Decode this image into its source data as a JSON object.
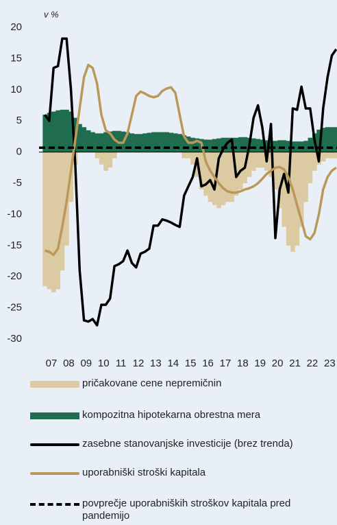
{
  "chart_data": {
    "type": "bar-line",
    "y_label": "v %",
    "x": [
      7.125,
      7.375,
      7.625,
      7.875,
      8.125,
      8.375,
      8.625,
      8.875,
      9.125,
      9.375,
      9.625,
      9.875,
      10.125,
      10.375,
      10.625,
      10.875,
      11.125,
      11.375,
      11.625,
      11.875,
      12.125,
      12.375,
      12.625,
      12.875,
      13.125,
      13.375,
      13.625,
      13.875,
      14.125,
      14.375,
      14.625,
      14.875,
      15.125,
      15.375,
      15.625,
      15.875,
      16.125,
      16.375,
      16.625,
      16.875,
      17.125,
      17.375,
      17.625,
      17.875,
      18.125,
      18.375,
      18.625,
      18.875,
      19.125,
      19.375,
      19.625,
      19.875,
      20.125,
      20.375,
      20.625,
      20.875,
      21.125,
      21.375,
      21.625,
      21.875,
      22.125,
      22.375,
      22.625,
      22.875,
      23.125,
      23.375,
      23.625,
      23.875
    ],
    "xlim": [
      6.79,
      23.92
    ],
    "xticks": [
      {
        "value": 7.5,
        "label": "07"
      },
      {
        "value": 8.5,
        "label": "08"
      },
      {
        "value": 9.5,
        "label": "09"
      },
      {
        "value": 10.5,
        "label": "10"
      },
      {
        "value": 11.5,
        "label": "11"
      },
      {
        "value": 12.5,
        "label": "12"
      },
      {
        "value": 13.5,
        "label": "13"
      },
      {
        "value": 14.5,
        "label": "14"
      },
      {
        "value": 15.5,
        "label": "15"
      },
      {
        "value": 16.5,
        "label": "16"
      },
      {
        "value": 17.5,
        "label": "17"
      },
      {
        "value": 18.5,
        "label": "18"
      },
      {
        "value": 19.5,
        "label": "19"
      },
      {
        "value": 20.5,
        "label": "20"
      },
      {
        "value": 21.5,
        "label": "21"
      },
      {
        "value": 22.5,
        "label": "22"
      },
      {
        "value": 23.5,
        "label": "23"
      }
    ],
    "ylim": [
      -30,
      20
    ],
    "yticks": [
      20,
      15,
      10,
      5,
      0,
      -5,
      -10,
      -15,
      -20,
      -25,
      -30
    ],
    "series": [
      {
        "name": "pričakovane cene nepremičnin",
        "kind": "bar",
        "color": "#dccaa3",
        "values": [
          -21.5,
          -22,
          -22.5,
          -22,
          -19,
          -15,
          -8,
          -2,
          0.5,
          0.5,
          0.3,
          0,
          -1,
          -2,
          -3,
          -2.5,
          -1,
          0.3,
          0.5,
          0.5,
          0.5,
          0.5,
          0.5,
          0.5,
          0.5,
          0.5,
          0.5,
          0.5,
          0.5,
          0.5,
          0.3,
          0,
          -1,
          -1,
          -2,
          -4,
          -6,
          -7,
          -8,
          -8.5,
          -9,
          -8.5,
          -8,
          -8,
          -7,
          -6,
          -5,
          -4,
          -3,
          -2.5,
          -2.5,
          -3,
          -4,
          -6,
          -9,
          -12,
          -15,
          -16,
          -15,
          -12,
          -8,
          -5,
          -3,
          -2,
          -1.5,
          -1,
          -1,
          -1
        ]
      },
      {
        "name": "kompozitna hipotekarna obrestna mera",
        "kind": "bar",
        "color": "#1f6d4e",
        "values": [
          6,
          6.3,
          6.5,
          6.7,
          6.8,
          6.8,
          6.5,
          5.5,
          4.5,
          4,
          3.5,
          3.2,
          3,
          3,
          3.2,
          3.3,
          3.4,
          3.4,
          3.3,
          3.2,
          3,
          2.9,
          2.9,
          3,
          3.1,
          3.2,
          3.2,
          3.2,
          3.2,
          3.1,
          3,
          2.9,
          2.7,
          2.5,
          2.3,
          2.2,
          2.1,
          2,
          2,
          2.1,
          2.2,
          2.3,
          2.3,
          2.3,
          2.3,
          2.4,
          2.4,
          2.3,
          2.2,
          2.1,
          2,
          1.9,
          1.8,
          1.8,
          1.9,
          1.9,
          1.8,
          1.7,
          1.7,
          1.7,
          1.8,
          2.3,
          3,
          3.6,
          3.9,
          4,
          4,
          4
        ]
      },
      {
        "name": "zasebne stanovanjske investicije (brez trenda)",
        "kind": "line",
        "color": "#000000",
        "values": [
          6,
          5,
          13.5,
          13.8,
          18.2,
          18.2,
          10,
          -2,
          -19,
          -27,
          -27.2,
          -26.8,
          -27.8,
          -24.5,
          -24.5,
          -23.5,
          -18.3,
          -18,
          -17.5,
          -15.8,
          -17.8,
          -18.5,
          -16.3,
          -16,
          -15.5,
          -11.8,
          -11.8,
          -10.8,
          -11,
          -11.3,
          -11.7,
          -12,
          -7,
          -5.5,
          -4,
          -1,
          -5.5,
          -5.2,
          -4.5,
          -6,
          -1,
          0.5,
          1.5,
          2,
          -4,
          -3,
          -2.5,
          1,
          5.5,
          7.5,
          4,
          -1.5,
          4.5,
          -13.8,
          -6,
          -3.5,
          -6.5,
          7,
          6.8,
          10.5,
          7,
          7,
          2,
          -1.5,
          7,
          12,
          15.5,
          16.5
        ]
      },
      {
        "name": "uporabniški stroški kapitala",
        "kind": "line",
        "color": "#b9985a",
        "values": [
          -15.8,
          -16,
          -16.5,
          -15.5,
          -12,
          -8,
          -3,
          2,
          7,
          12,
          14,
          13.5,
          11,
          6,
          3.5,
          3,
          2,
          1.5,
          1.5,
          3,
          6,
          9,
          9.7,
          9.4,
          9,
          8.8,
          9,
          9.8,
          10.2,
          10.4,
          9.5,
          6,
          2.5,
          1.5,
          1.5,
          1.8,
          1.5,
          -1.5,
          -3,
          -4,
          -5,
          -5.8,
          -6.3,
          -6.5,
          -6.5,
          -6.3,
          -6,
          -5.8,
          -5.5,
          -5,
          -4.3,
          -3.5,
          -3,
          -2.5,
          -2.4,
          -2.8,
          -4,
          -6,
          -8.5,
          -11,
          -13.5,
          -14,
          -13,
          -10,
          -6,
          -4,
          -3,
          -2.5
        ]
      },
      {
        "name": "povprečje uporabniških stroškov kapitala pred pandemijo",
        "kind": "hline",
        "color": "#000000",
        "value": 0.7
      }
    ]
  }
}
